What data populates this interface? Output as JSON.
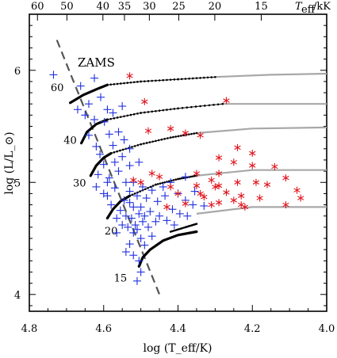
{
  "chart_data": {
    "type": "scatter",
    "title": "",
    "xlabel": "log (T_eff/K)",
    "ylabel": "log (L/L_⊙)",
    "xlim": [
      4.8,
      4.0
    ],
    "ylim": [
      3.85,
      6.5
    ],
    "x_ticks": [
      4.8,
      4.6,
      4.4,
      4.2,
      4.0
    ],
    "x_tick_labels": [
      "4.8",
      "4.6",
      "4.4",
      "4.2",
      "4.0"
    ],
    "y_ticks": [
      4,
      5,
      6
    ],
    "y_tick_labels": [
      "4",
      "5",
      "6"
    ],
    "top_axis": {
      "label": "T_eff /kK",
      "label_main": "T",
      "label_sub": "eff",
      "label_unit": "/kK",
      "ticks_kK": [
        60,
        50,
        40,
        35,
        30,
        25,
        20,
        15
      ],
      "tick_labels": [
        "60",
        "50",
        "40",
        "35",
        "30",
        "25",
        "20",
        "15"
      ]
    },
    "zams": {
      "label": "ZAMS",
      "points": [
        [
          4.726,
          6.27
        ],
        [
          4.45,
          4.0
        ]
      ]
    },
    "tracks": [
      {
        "mass_label": "60",
        "label_at": [
          4.725,
          5.85
        ],
        "thick": [
          [
            4.69,
            5.71
          ],
          [
            4.655,
            5.78
          ],
          [
            4.62,
            5.83
          ],
          [
            4.59,
            5.87
          ]
        ],
        "dotted": [
          [
            4.59,
            5.87
          ],
          [
            4.5,
            5.9
          ],
          [
            4.4,
            5.92
          ],
          [
            4.3,
            5.94
          ]
        ],
        "gray": [
          [
            4.3,
            5.94
          ],
          [
            4.15,
            5.96
          ],
          [
            4.0,
            5.97
          ]
        ]
      },
      {
        "mass_label": "40",
        "label_at": [
          4.69,
          5.38
        ],
        "thick": [
          [
            4.66,
            5.35
          ],
          [
            4.645,
            5.45
          ],
          [
            4.62,
            5.52
          ],
          [
            4.59,
            5.56
          ]
        ],
        "dotted": [
          [
            4.59,
            5.56
          ],
          [
            4.5,
            5.62
          ],
          [
            4.4,
            5.66
          ],
          [
            4.28,
            5.7
          ]
        ],
        "gray": [
          [
            4.28,
            5.7
          ],
          [
            4.14,
            5.7
          ],
          [
            4.0,
            5.7
          ]
        ]
      },
      {
        "mass_label": "30",
        "label_at": [
          4.665,
          5.0
        ],
        "thick": [
          [
            4.635,
            5.06
          ],
          [
            4.62,
            5.15
          ],
          [
            4.6,
            5.22
          ],
          [
            4.58,
            5.26
          ]
        ],
        "dotted": [
          [
            4.58,
            5.26
          ],
          [
            4.5,
            5.34
          ],
          [
            4.42,
            5.4
          ],
          [
            4.35,
            5.44
          ]
        ],
        "gray": [
          [
            4.35,
            5.44
          ],
          [
            4.2,
            5.48
          ],
          [
            4.0,
            5.49
          ]
        ]
      },
      {
        "mass_label": "20",
        "label_at": [
          4.58,
          4.57
        ],
        "thick": [
          [
            4.59,
            4.68
          ],
          [
            4.575,
            4.76
          ],
          [
            4.555,
            4.83
          ],
          [
            4.53,
            4.88
          ]
        ],
        "dotted": [
          [
            4.53,
            4.88
          ],
          [
            4.46,
            4.98
          ],
          [
            4.4,
            5.03
          ],
          [
            4.35,
            5.06
          ]
        ],
        "gray": [
          [
            4.35,
            5.06
          ],
          [
            4.2,
            5.11
          ],
          [
            4.0,
            5.11
          ]
        ]
      },
      {
        "mass_label": "15",
        "label_at": [
          4.555,
          4.15
        ],
        "thick": [
          [
            4.505,
            4.25
          ],
          [
            4.495,
            4.33
          ],
          [
            4.475,
            4.4
          ],
          [
            4.44,
            4.48
          ],
          [
            4.4,
            4.53
          ],
          [
            4.35,
            4.56
          ]
        ],
        "dotted": [
          [
            4.42,
            4.56
          ],
          [
            4.38,
            4.6
          ],
          [
            4.35,
            4.63
          ]
        ],
        "gray": [
          [
            4.35,
            4.72
          ],
          [
            4.2,
            4.78
          ],
          [
            4.0,
            4.78
          ]
        ]
      }
    ],
    "series": [
      {
        "marker": "plus",
        "color": "#1f2fe0",
        "points": [
          [
            4.735,
            5.96
          ],
          [
            4.662,
            5.86
          ],
          [
            4.625,
            5.93
          ],
          [
            4.608,
            5.76
          ],
          [
            4.64,
            5.7
          ],
          [
            4.65,
            5.6
          ],
          [
            4.625,
            5.56
          ],
          [
            4.598,
            5.54
          ],
          [
            4.575,
            5.62
          ],
          [
            4.55,
            5.68
          ],
          [
            4.56,
            5.45
          ],
          [
            4.585,
            5.43
          ],
          [
            4.575,
            5.33
          ],
          [
            4.62,
            5.32
          ],
          [
            4.64,
            5.42
          ],
          [
            4.53,
            5.3
          ],
          [
            4.55,
            5.23
          ],
          [
            4.6,
            5.16
          ],
          [
            4.615,
            5.07
          ],
          [
            4.585,
            5.04
          ],
          [
            4.56,
            5.1
          ],
          [
            4.53,
            5.15
          ],
          [
            4.505,
            5.18
          ],
          [
            4.54,
            5.0
          ],
          [
            4.57,
            4.95
          ],
          [
            4.59,
            4.88
          ],
          [
            4.58,
            4.8
          ],
          [
            4.555,
            4.75
          ],
          [
            4.53,
            4.82
          ],
          [
            4.51,
            4.88
          ],
          [
            4.495,
            4.96
          ],
          [
            4.47,
            4.93
          ],
          [
            4.44,
            4.96
          ],
          [
            4.42,
            5.0
          ],
          [
            4.38,
            5.05
          ],
          [
            4.4,
            4.9
          ],
          [
            4.38,
            4.84
          ],
          [
            4.36,
            4.8
          ],
          [
            4.33,
            4.79
          ],
          [
            4.52,
            4.78
          ],
          [
            4.505,
            4.72
          ],
          [
            4.495,
            4.65
          ],
          [
            4.48,
            4.6
          ],
          [
            4.46,
            4.65
          ],
          [
            4.45,
            4.7
          ],
          [
            4.43,
            4.66
          ],
          [
            4.41,
            4.62
          ],
          [
            4.54,
            4.7
          ],
          [
            4.55,
            4.62
          ],
          [
            4.565,
            4.55
          ],
          [
            4.52,
            4.55
          ],
          [
            4.5,
            4.5
          ],
          [
            4.49,
            4.44
          ],
          [
            4.47,
            4.52
          ],
          [
            4.53,
            4.45
          ],
          [
            4.54,
            4.38
          ],
          [
            4.52,
            4.35
          ],
          [
            4.505,
            4.3
          ],
          [
            4.5,
            4.2
          ],
          [
            4.51,
            4.12
          ],
          [
            4.6,
            4.9
          ],
          [
            4.565,
            4.68
          ],
          [
            4.535,
            4.6
          ],
          [
            4.515,
            4.62
          ],
          [
            4.5,
            4.78
          ],
          [
            4.485,
            4.86
          ],
          [
            4.475,
            4.74
          ],
          [
            4.455,
            4.83
          ],
          [
            4.435,
            4.88
          ],
          [
            4.415,
            4.76
          ],
          [
            4.395,
            4.72
          ],
          [
            4.375,
            4.7
          ],
          [
            4.355,
            4.92
          ],
          [
            4.53,
            4.92
          ],
          [
            4.545,
            4.84
          ],
          [
            4.59,
            5.0
          ],
          [
            4.62,
            4.96
          ],
          [
            4.57,
            5.18
          ],
          [
            4.61,
            5.25
          ],
          [
            4.545,
            5.38
          ],
          [
            4.67,
            5.65
          ],
          [
            4.59,
            5.65
          ],
          [
            4.52,
            5.0
          ],
          [
            4.49,
            4.7
          ],
          [
            4.51,
            4.58
          ],
          [
            4.525,
            4.68
          ]
        ]
      },
      {
        "marker": "asterisk",
        "color": "#e0141c",
        "points": [
          [
            4.53,
            5.95
          ],
          [
            4.49,
            5.72
          ],
          [
            4.42,
            5.48
          ],
          [
            4.38,
            5.44
          ],
          [
            4.34,
            5.42
          ],
          [
            4.27,
            5.73
          ],
          [
            4.24,
            5.31
          ],
          [
            4.29,
            5.22
          ],
          [
            4.2,
            5.26
          ],
          [
            4.25,
            5.18
          ],
          [
            4.2,
            5.15
          ],
          [
            4.14,
            5.14
          ],
          [
            4.29,
            5.08
          ],
          [
            4.31,
            5.02
          ],
          [
            4.24,
            5.0
          ],
          [
            4.19,
            5.0
          ],
          [
            4.11,
            5.04
          ],
          [
            4.35,
            4.97
          ],
          [
            4.3,
            4.96
          ],
          [
            4.27,
            4.91
          ],
          [
            4.23,
            4.88
          ],
          [
            4.16,
            4.98
          ],
          [
            4.08,
            4.93
          ],
          [
            4.4,
            4.9
          ],
          [
            4.33,
            4.87
          ],
          [
            4.25,
            4.84
          ],
          [
            4.18,
            4.86
          ],
          [
            4.07,
            4.86
          ],
          [
            4.38,
            4.81
          ],
          [
            4.31,
            4.8
          ],
          [
            4.23,
            4.8
          ],
          [
            4.22,
            4.78
          ],
          [
            4.11,
            4.8
          ],
          [
            4.52,
            5.02
          ],
          [
            4.47,
            5.08
          ],
          [
            4.45,
            5.05
          ],
          [
            4.35,
            5.08
          ],
          [
            4.42,
            4.96
          ],
          [
            4.34,
            4.9
          ],
          [
            4.29,
            4.97
          ],
          [
            4.29,
            4.82
          ],
          [
            4.43,
            4.78
          ],
          [
            4.48,
            5.46
          ],
          [
            4.5,
            5.0
          ]
        ]
      }
    ]
  }
}
